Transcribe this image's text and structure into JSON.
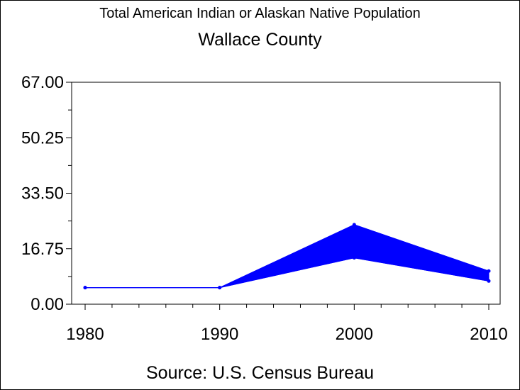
{
  "chart_data": {
    "type": "line",
    "title": "Total American Indian or Alaskan Native Population",
    "subtitle": "Wallace County",
    "source": "Source: U.S. Census Bureau",
    "xlabel": "",
    "ylabel": "",
    "x": [
      1980,
      1990,
      2000,
      2010
    ],
    "x_tick_labels": [
      "1980",
      "1990",
      "2000",
      "2010"
    ],
    "y_tick_labels": [
      "0.00",
      "16.75",
      "33.50",
      "50.25",
      "67.00"
    ],
    "y_ticks": [
      0,
      16.75,
      33.5,
      50.25,
      67
    ],
    "ylim": [
      0,
      67
    ],
    "xlim": [
      1980,
      2010
    ],
    "upper": [
      5,
      5,
      24,
      10
    ],
    "lower": [
      5,
      5,
      14,
      7
    ],
    "grid": false,
    "series_color": "#0000ff",
    "axis_color": "#000000"
  }
}
